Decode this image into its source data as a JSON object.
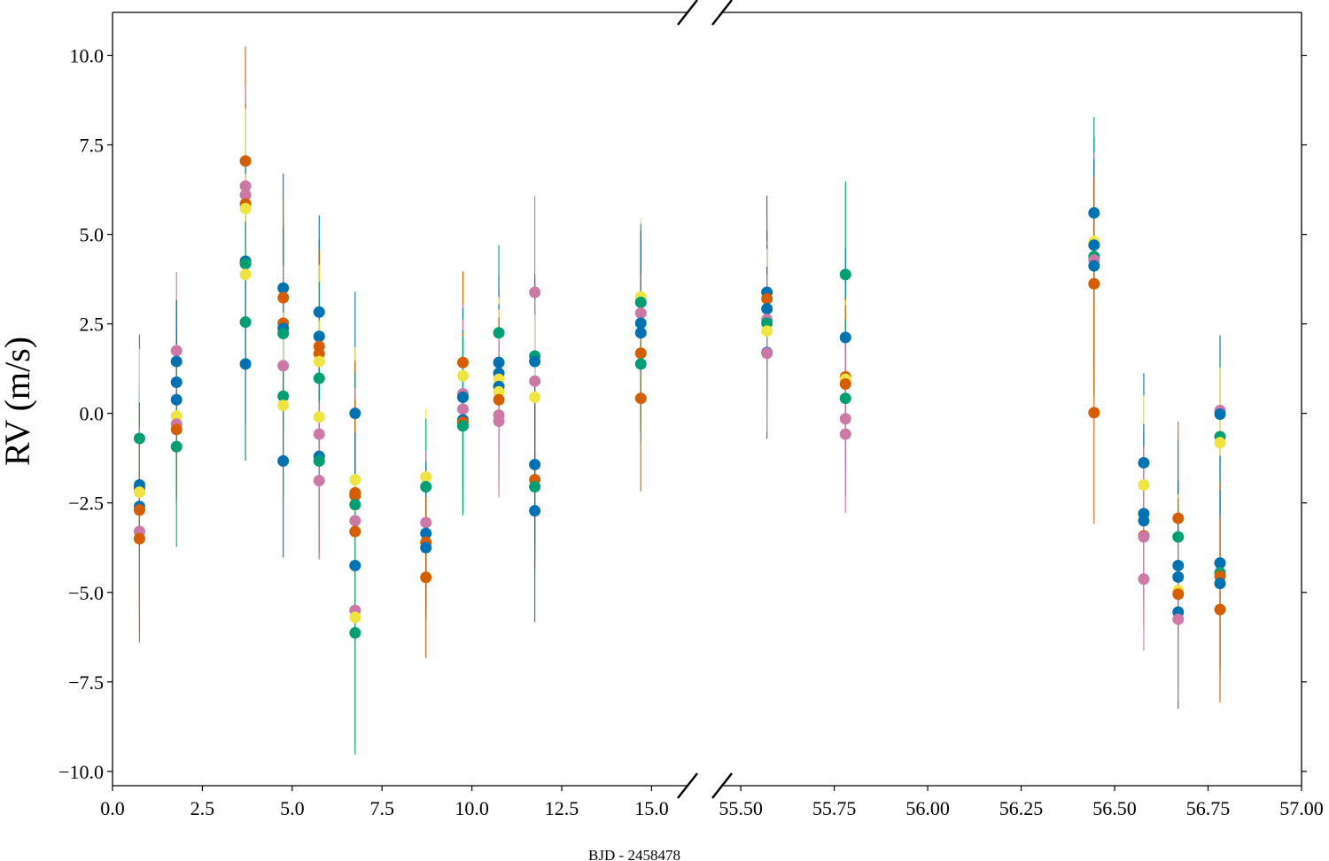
{
  "chart_data": {
    "type": "scatter",
    "title": "",
    "xlabel": "BJD - 2458478",
    "ylabel": "RV (m/s)",
    "ylim": [
      -10.4,
      11.2
    ],
    "grid": false,
    "legend": "none",
    "broken_x_axis": true,
    "panels": [
      {
        "xlim": [
          0.0,
          16.0
        ],
        "x_ticks": [
          "0.0",
          "2.5",
          "5.0",
          "7.5",
          "10.0",
          "12.5",
          "15.0"
        ],
        "x_tick_values": [
          0.0,
          2.5,
          5.0,
          7.5,
          10.0,
          12.5,
          15.0
        ]
      },
      {
        "xlim": [
          55.45,
          57.0
        ],
        "x_ticks": [
          "55.50",
          "55.75",
          "56.00",
          "56.25",
          "56.50",
          "56.75",
          "57.00"
        ],
        "x_tick_values": [
          55.5,
          55.75,
          56.0,
          56.25,
          56.5,
          56.75,
          57.0
        ]
      }
    ],
    "y_ticks": [
      "−10.0",
      "−7.5",
      "−5.0",
      "−2.5",
      "0.0",
      "2.5",
      "5.0",
      "7.5",
      "10.0"
    ],
    "y_tick_values": [
      -10.0,
      -7.5,
      -5.0,
      -2.5,
      0.0,
      2.5,
      5.0,
      7.5,
      10.0
    ],
    "colors": {
      "blue": "#0072b2",
      "orange": "#d55e00",
      "green": "#009e73",
      "yellow": "#f0e442",
      "pink": "#cc79a7"
    },
    "points": [
      {
        "panel": 0,
        "x": 0.75,
        "y": -0.7,
        "err": 2.9,
        "color": "green"
      },
      {
        "panel": 0,
        "x": 0.75,
        "y": -2.0,
        "err": 2.9,
        "color": "blue"
      },
      {
        "panel": 0,
        "x": 0.75,
        "y": -2.1,
        "err": 2.9,
        "color": "blue"
      },
      {
        "panel": 0,
        "x": 0.75,
        "y": -2.2,
        "err": 4.0,
        "color": "yellow"
      },
      {
        "panel": 0,
        "x": 0.75,
        "y": -2.6,
        "err": 2.9,
        "color": "blue"
      },
      {
        "panel": 0,
        "x": 0.75,
        "y": -2.7,
        "err": 2.9,
        "color": "orange"
      },
      {
        "panel": 0,
        "x": 0.75,
        "y": -3.3,
        "err": 2.9,
        "color": "pink"
      },
      {
        "panel": 0,
        "x": 0.75,
        "y": -3.5,
        "err": 2.9,
        "color": "orange"
      },
      {
        "panel": 0,
        "x": 1.78,
        "y": 1.75,
        "err": 2.2,
        "color": "pink"
      },
      {
        "panel": 0,
        "x": 1.78,
        "y": 1.45,
        "err": 1.7,
        "color": "blue"
      },
      {
        "panel": 0,
        "x": 1.78,
        "y": 0.87,
        "err": 2.3,
        "color": "blue"
      },
      {
        "panel": 0,
        "x": 1.78,
        "y": 0.38,
        "err": 2.0,
        "color": "blue"
      },
      {
        "panel": 0,
        "x": 1.78,
        "y": -0.08,
        "err": 2.0,
        "color": "yellow"
      },
      {
        "panel": 0,
        "x": 1.78,
        "y": -0.3,
        "err": 2.0,
        "color": "pink"
      },
      {
        "panel": 0,
        "x": 1.78,
        "y": -0.45,
        "err": 2.0,
        "color": "orange"
      },
      {
        "panel": 0,
        "x": 1.78,
        "y": -0.93,
        "err": 2.8,
        "color": "green"
      },
      {
        "panel": 0,
        "x": 3.7,
        "y": 7.05,
        "err": 3.2,
        "color": "orange"
      },
      {
        "panel": 0,
        "x": 3.7,
        "y": 6.35,
        "err": 2.8,
        "color": "pink"
      },
      {
        "panel": 0,
        "x": 3.7,
        "y": 6.1,
        "err": 2.8,
        "color": "pink"
      },
      {
        "panel": 0,
        "x": 3.7,
        "y": 5.85,
        "err": 2.8,
        "color": "orange"
      },
      {
        "panel": 0,
        "x": 3.7,
        "y": 5.72,
        "err": 2.8,
        "color": "yellow"
      },
      {
        "panel": 0,
        "x": 3.7,
        "y": 4.25,
        "err": 2.8,
        "color": "blue"
      },
      {
        "panel": 0,
        "x": 3.7,
        "y": 4.18,
        "err": 2.8,
        "color": "green"
      },
      {
        "panel": 0,
        "x": 3.7,
        "y": 3.88,
        "err": 2.8,
        "color": "yellow"
      },
      {
        "panel": 0,
        "x": 3.7,
        "y": 2.55,
        "err": 2.8,
        "color": "green"
      },
      {
        "panel": 0,
        "x": 3.7,
        "y": 1.38,
        "err": 2.7,
        "color": "blue"
      },
      {
        "panel": 0,
        "x": 4.75,
        "y": 3.5,
        "err": 3.2,
        "color": "blue"
      },
      {
        "panel": 0,
        "x": 4.75,
        "y": 3.23,
        "err": 2.8,
        "color": "orange"
      },
      {
        "panel": 0,
        "x": 4.75,
        "y": 2.52,
        "err": 2.8,
        "color": "orange"
      },
      {
        "panel": 0,
        "x": 4.75,
        "y": 2.37,
        "err": 2.8,
        "color": "blue"
      },
      {
        "panel": 0,
        "x": 4.75,
        "y": 2.23,
        "err": 2.8,
        "color": "green"
      },
      {
        "panel": 0,
        "x": 4.75,
        "y": 1.33,
        "err": 2.8,
        "color": "pink"
      },
      {
        "panel": 0,
        "x": 4.75,
        "y": 0.48,
        "err": 2.8,
        "color": "green"
      },
      {
        "panel": 0,
        "x": 4.75,
        "y": 0.22,
        "err": 2.6,
        "color": "yellow"
      },
      {
        "panel": 0,
        "x": 4.75,
        "y": -1.33,
        "err": 2.7,
        "color": "blue"
      },
      {
        "panel": 0,
        "x": 5.75,
        "y": 2.83,
        "err": 2.7,
        "color": "blue"
      },
      {
        "panel": 0,
        "x": 5.75,
        "y": 2.15,
        "err": 2.7,
        "color": "blue"
      },
      {
        "panel": 0,
        "x": 5.75,
        "y": 1.87,
        "err": 2.7,
        "color": "orange"
      },
      {
        "panel": 0,
        "x": 5.75,
        "y": 1.67,
        "err": 2.7,
        "color": "orange"
      },
      {
        "panel": 0,
        "x": 5.75,
        "y": 1.45,
        "err": 2.7,
        "color": "yellow"
      },
      {
        "panel": 0,
        "x": 5.75,
        "y": 0.98,
        "err": 2.7,
        "color": "green"
      },
      {
        "panel": 0,
        "x": 5.75,
        "y": -0.1,
        "err": 2.7,
        "color": "yellow"
      },
      {
        "panel": 0,
        "x": 5.75,
        "y": -0.58,
        "err": 2.7,
        "color": "pink"
      },
      {
        "panel": 0,
        "x": 5.75,
        "y": -1.2,
        "err": 2.7,
        "color": "blue"
      },
      {
        "panel": 0,
        "x": 5.75,
        "y": -1.33,
        "err": 2.7,
        "color": "green"
      },
      {
        "panel": 0,
        "x": 5.75,
        "y": -1.88,
        "err": 2.2,
        "color": "pink"
      },
      {
        "panel": 0,
        "x": 6.75,
        "y": 0.0,
        "err": 3.4,
        "color": "blue"
      },
      {
        "panel": 0,
        "x": 6.75,
        "y": -1.85,
        "err": 3.7,
        "color": "yellow"
      },
      {
        "panel": 0,
        "x": 6.75,
        "y": -2.22,
        "err": 3.7,
        "color": "orange"
      },
      {
        "panel": 0,
        "x": 6.75,
        "y": -2.3,
        "err": 3.7,
        "color": "orange"
      },
      {
        "panel": 0,
        "x": 6.75,
        "y": -2.55,
        "err": 3.7,
        "color": "green"
      },
      {
        "panel": 0,
        "x": 6.75,
        "y": -3.0,
        "err": 3.7,
        "color": "pink"
      },
      {
        "panel": 0,
        "x": 6.75,
        "y": -3.3,
        "err": 3.7,
        "color": "orange"
      },
      {
        "panel": 0,
        "x": 6.75,
        "y": -4.25,
        "err": 3.7,
        "color": "blue"
      },
      {
        "panel": 0,
        "x": 6.75,
        "y": -5.5,
        "err": 3.7,
        "color": "pink"
      },
      {
        "panel": 0,
        "x": 6.75,
        "y": -5.7,
        "err": 3.7,
        "color": "yellow"
      },
      {
        "panel": 0,
        "x": 6.75,
        "y": -6.13,
        "err": 3.4,
        "color": "green"
      },
      {
        "panel": 0,
        "x": 8.72,
        "y": -1.78,
        "err": 1.9,
        "color": "yellow"
      },
      {
        "panel": 0,
        "x": 8.72,
        "y": -2.05,
        "err": 1.9,
        "color": "green"
      },
      {
        "panel": 0,
        "x": 8.72,
        "y": -3.05,
        "err": 2.0,
        "color": "pink"
      },
      {
        "panel": 0,
        "x": 8.72,
        "y": -3.35,
        "err": 2.0,
        "color": "blue"
      },
      {
        "panel": 0,
        "x": 8.72,
        "y": -3.6,
        "err": 2.0,
        "color": "orange"
      },
      {
        "panel": 0,
        "x": 8.72,
        "y": -3.75,
        "err": 2.0,
        "color": "blue"
      },
      {
        "panel": 0,
        "x": 8.72,
        "y": -4.58,
        "err": 2.25,
        "color": "orange"
      },
      {
        "panel": 0,
        "x": 9.75,
        "y": 1.42,
        "err": 2.55,
        "color": "orange"
      },
      {
        "panel": 0,
        "x": 9.75,
        "y": 1.05,
        "err": 2.0,
        "color": "yellow"
      },
      {
        "panel": 0,
        "x": 9.75,
        "y": 0.55,
        "err": 2.5,
        "color": "pink"
      },
      {
        "panel": 0,
        "x": 9.75,
        "y": 0.45,
        "err": 2.5,
        "color": "blue"
      },
      {
        "panel": 0,
        "x": 9.75,
        "y": 0.12,
        "err": 2.5,
        "color": "pink"
      },
      {
        "panel": 0,
        "x": 9.75,
        "y": -0.18,
        "err": 2.5,
        "color": "blue"
      },
      {
        "panel": 0,
        "x": 9.75,
        "y": -0.25,
        "err": 2.5,
        "color": "orange"
      },
      {
        "panel": 0,
        "x": 9.75,
        "y": -0.35,
        "err": 2.5,
        "color": "green"
      },
      {
        "panel": 0,
        "x": 10.75,
        "y": 2.25,
        "err": 2.45,
        "color": "green"
      },
      {
        "panel": 0,
        "x": 10.75,
        "y": 1.42,
        "err": 2.45,
        "color": "blue"
      },
      {
        "panel": 0,
        "x": 10.75,
        "y": 1.12,
        "err": 2.3,
        "color": "blue"
      },
      {
        "panel": 0,
        "x": 10.75,
        "y": 0.95,
        "err": 2.3,
        "color": "yellow"
      },
      {
        "panel": 0,
        "x": 10.75,
        "y": 0.75,
        "err": 2.3,
        "color": "blue"
      },
      {
        "panel": 0,
        "x": 10.75,
        "y": 0.6,
        "err": 2.3,
        "color": "yellow"
      },
      {
        "panel": 0,
        "x": 10.75,
        "y": 0.38,
        "err": 2.3,
        "color": "orange"
      },
      {
        "panel": 0,
        "x": 10.75,
        "y": -0.05,
        "err": 2.3,
        "color": "pink"
      },
      {
        "panel": 0,
        "x": 10.75,
        "y": -0.22,
        "err": 2.0,
        "color": "pink"
      },
      {
        "panel": 0,
        "x": 11.75,
        "y": 3.38,
        "err": 2.7,
        "color": "pink"
      },
      {
        "panel": 0,
        "x": 11.75,
        "y": 1.6,
        "err": 2.3,
        "color": "green"
      },
      {
        "panel": 0,
        "x": 11.75,
        "y": 1.45,
        "err": 2.3,
        "color": "blue"
      },
      {
        "panel": 0,
        "x": 11.75,
        "y": 0.9,
        "err": 2.3,
        "color": "pink"
      },
      {
        "panel": 0,
        "x": 11.75,
        "y": 0.45,
        "err": 2.3,
        "color": "yellow"
      },
      {
        "panel": 0,
        "x": 11.75,
        "y": -1.43,
        "err": 2.3,
        "color": "blue"
      },
      {
        "panel": 0,
        "x": 11.75,
        "y": -1.85,
        "err": 2.3,
        "color": "orange"
      },
      {
        "panel": 0,
        "x": 11.75,
        "y": -2.05,
        "err": 2.3,
        "color": "green"
      },
      {
        "panel": 0,
        "x": 11.75,
        "y": -2.72,
        "err": 3.1,
        "color": "blue"
      },
      {
        "panel": 0,
        "x": 14.7,
        "y": 3.25,
        "err": 2.2,
        "color": "yellow"
      },
      {
        "panel": 0,
        "x": 14.7,
        "y": 3.1,
        "err": 2.2,
        "color": "green"
      },
      {
        "panel": 0,
        "x": 14.7,
        "y": 2.8,
        "err": 2.2,
        "color": "pink"
      },
      {
        "panel": 0,
        "x": 14.7,
        "y": 2.52,
        "err": 2.6,
        "color": "blue"
      },
      {
        "panel": 0,
        "x": 14.7,
        "y": 2.25,
        "err": 2.6,
        "color": "blue"
      },
      {
        "panel": 0,
        "x": 14.7,
        "y": 1.68,
        "err": 2.2,
        "color": "orange"
      },
      {
        "panel": 0,
        "x": 14.7,
        "y": 1.38,
        "err": 2.2,
        "color": "green"
      },
      {
        "panel": 0,
        "x": 14.7,
        "y": 0.42,
        "err": 2.6,
        "color": "orange"
      },
      {
        "panel": 1,
        "x": 55.57,
        "y": 3.38,
        "err": 2.7,
        "color": "blue"
      },
      {
        "panel": 1,
        "x": 55.57,
        "y": 3.2,
        "err": 2.2,
        "color": "orange"
      },
      {
        "panel": 1,
        "x": 55.57,
        "y": 2.92,
        "err": 2.2,
        "color": "blue"
      },
      {
        "panel": 1,
        "x": 55.57,
        "y": 2.62,
        "err": 2.2,
        "color": "pink"
      },
      {
        "panel": 1,
        "x": 55.57,
        "y": 2.52,
        "err": 2.2,
        "color": "green"
      },
      {
        "panel": 1,
        "x": 55.57,
        "y": 2.3,
        "err": 2.3,
        "color": "yellow"
      },
      {
        "panel": 1,
        "x": 55.57,
        "y": 1.7,
        "err": 2.4,
        "color": "blue"
      },
      {
        "panel": 1,
        "x": 55.57,
        "y": 1.68,
        "err": 2.2,
        "color": "pink"
      },
      {
        "panel": 1,
        "x": 55.78,
        "y": 3.88,
        "err": 2.6,
        "color": "green"
      },
      {
        "panel": 1,
        "x": 55.78,
        "y": 2.12,
        "err": 2.5,
        "color": "blue"
      },
      {
        "panel": 1,
        "x": 55.78,
        "y": 1.02,
        "err": 2.2,
        "color": "orange"
      },
      {
        "panel": 1,
        "x": 55.78,
        "y": 0.95,
        "err": 2.2,
        "color": "yellow"
      },
      {
        "panel": 1,
        "x": 55.78,
        "y": 0.82,
        "err": 2.2,
        "color": "orange"
      },
      {
        "panel": 1,
        "x": 55.78,
        "y": 0.42,
        "err": 2.2,
        "color": "green"
      },
      {
        "panel": 1,
        "x": 55.78,
        "y": -0.15,
        "err": 2.2,
        "color": "pink"
      },
      {
        "panel": 1,
        "x": 55.78,
        "y": -0.58,
        "err": 2.2,
        "color": "pink"
      },
      {
        "panel": 1,
        "x": 56.445,
        "y": 5.6,
        "err": 2.1,
        "color": "blue"
      },
      {
        "panel": 1,
        "x": 56.445,
        "y": 4.8,
        "err": 2.9,
        "color": "yellow"
      },
      {
        "panel": 1,
        "x": 56.445,
        "y": 4.7,
        "err": 3.0,
        "color": "blue"
      },
      {
        "panel": 1,
        "x": 56.445,
        "y": 4.38,
        "err": 3.9,
        "color": "green"
      },
      {
        "panel": 1,
        "x": 56.445,
        "y": 4.28,
        "err": 3.0,
        "color": "pink"
      },
      {
        "panel": 1,
        "x": 56.445,
        "y": 4.12,
        "err": 3.0,
        "color": "blue"
      },
      {
        "panel": 1,
        "x": 56.445,
        "y": 3.62,
        "err": 3.0,
        "color": "orange"
      },
      {
        "panel": 1,
        "x": 56.445,
        "y": 0.02,
        "err": 3.1,
        "color": "orange"
      },
      {
        "panel": 1,
        "x": 56.578,
        "y": -1.38,
        "err": 2.5,
        "color": "blue"
      },
      {
        "panel": 1,
        "x": 56.578,
        "y": -2.0,
        "err": 2.5,
        "color": "yellow"
      },
      {
        "panel": 1,
        "x": 56.578,
        "y": -2.8,
        "err": 2.5,
        "color": "blue"
      },
      {
        "panel": 1,
        "x": 56.578,
        "y": -3.0,
        "err": 2.5,
        "color": "blue"
      },
      {
        "panel": 1,
        "x": 56.578,
        "y": -3.42,
        "err": 2.5,
        "color": "orange"
      },
      {
        "panel": 1,
        "x": 56.578,
        "y": -3.45,
        "err": 2.5,
        "color": "pink"
      },
      {
        "panel": 1,
        "x": 56.578,
        "y": -4.63,
        "err": 2.0,
        "color": "pink"
      },
      {
        "panel": 1,
        "x": 56.67,
        "y": -2.93,
        "err": 2.7,
        "color": "orange"
      },
      {
        "panel": 1,
        "x": 56.67,
        "y": -3.45,
        "err": 2.7,
        "color": "green"
      },
      {
        "panel": 1,
        "x": 56.67,
        "y": -4.25,
        "err": 2.3,
        "color": "blue"
      },
      {
        "panel": 1,
        "x": 56.67,
        "y": -4.57,
        "err": 2.7,
        "color": "blue"
      },
      {
        "panel": 1,
        "x": 56.67,
        "y": -4.95,
        "err": 2.7,
        "color": "yellow"
      },
      {
        "panel": 1,
        "x": 56.67,
        "y": -5.05,
        "err": 2.7,
        "color": "orange"
      },
      {
        "panel": 1,
        "x": 56.67,
        "y": -5.55,
        "err": 2.7,
        "color": "blue"
      },
      {
        "panel": 1,
        "x": 56.67,
        "y": -5.75,
        "err": 2.3,
        "color": "pink"
      },
      {
        "panel": 1,
        "x": 56.782,
        "y": 0.08,
        "err": 2.1,
        "color": "pink"
      },
      {
        "panel": 1,
        "x": 56.782,
        "y": -0.02,
        "err": 2.2,
        "color": "blue"
      },
      {
        "panel": 1,
        "x": 56.782,
        "y": -0.65,
        "err": 2.2,
        "color": "green"
      },
      {
        "panel": 1,
        "x": 56.782,
        "y": -0.82,
        "err": 2.1,
        "color": "yellow"
      },
      {
        "panel": 1,
        "x": 56.782,
        "y": -4.18,
        "err": 3.0,
        "color": "blue"
      },
      {
        "panel": 1,
        "x": 56.782,
        "y": -4.45,
        "err": 2.6,
        "color": "green"
      },
      {
        "panel": 1,
        "x": 56.782,
        "y": -4.55,
        "err": 2.6,
        "color": "orange"
      },
      {
        "panel": 1,
        "x": 56.782,
        "y": -4.75,
        "err": 2.6,
        "color": "blue"
      },
      {
        "panel": 1,
        "x": 56.782,
        "y": -5.48,
        "err": 2.6,
        "color": "orange"
      }
    ]
  }
}
